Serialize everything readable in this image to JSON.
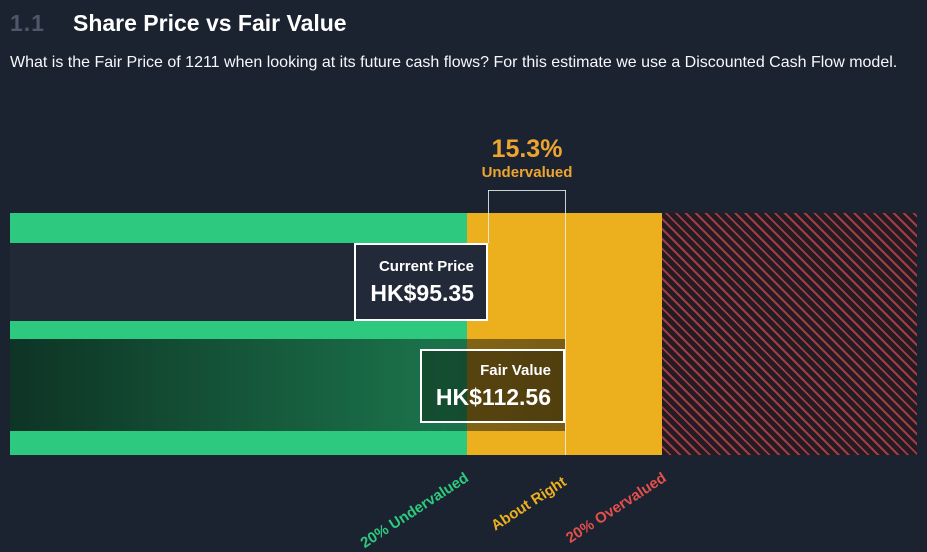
{
  "header": {
    "section_number": "1.1",
    "title": "Share Price vs Fair Value"
  },
  "description": "What is the Fair Price of 1211 when looking at its future cash flows? For this estimate we use a Discounted Cash Flow model.",
  "colors": {
    "background": "#1b2230",
    "undervalued_green": "#2dc97e",
    "about_right_yellow": "#ecb01f",
    "overvalued_red": "#e2504c",
    "annotation_orange": "#eda530"
  },
  "chart_data": {
    "type": "bar",
    "title": "Share Price vs Fair Value",
    "currency": "HK$",
    "discount_pct": 15.3,
    "annotation": {
      "percent": "15.3%",
      "label": "Undervalued"
    },
    "bars": [
      {
        "name": "Current Price",
        "value": 95.35,
        "display": "HK$95.35"
      },
      {
        "name": "Fair Value",
        "value": 112.56,
        "display": "HK$112.56"
      }
    ],
    "zones": [
      {
        "label": "20% Undervalued",
        "color": "#2dc97e"
      },
      {
        "label": "About Right",
        "color": "#ecb01f"
      },
      {
        "label": "20% Overvalued",
        "color": "#e2504c"
      }
    ]
  }
}
